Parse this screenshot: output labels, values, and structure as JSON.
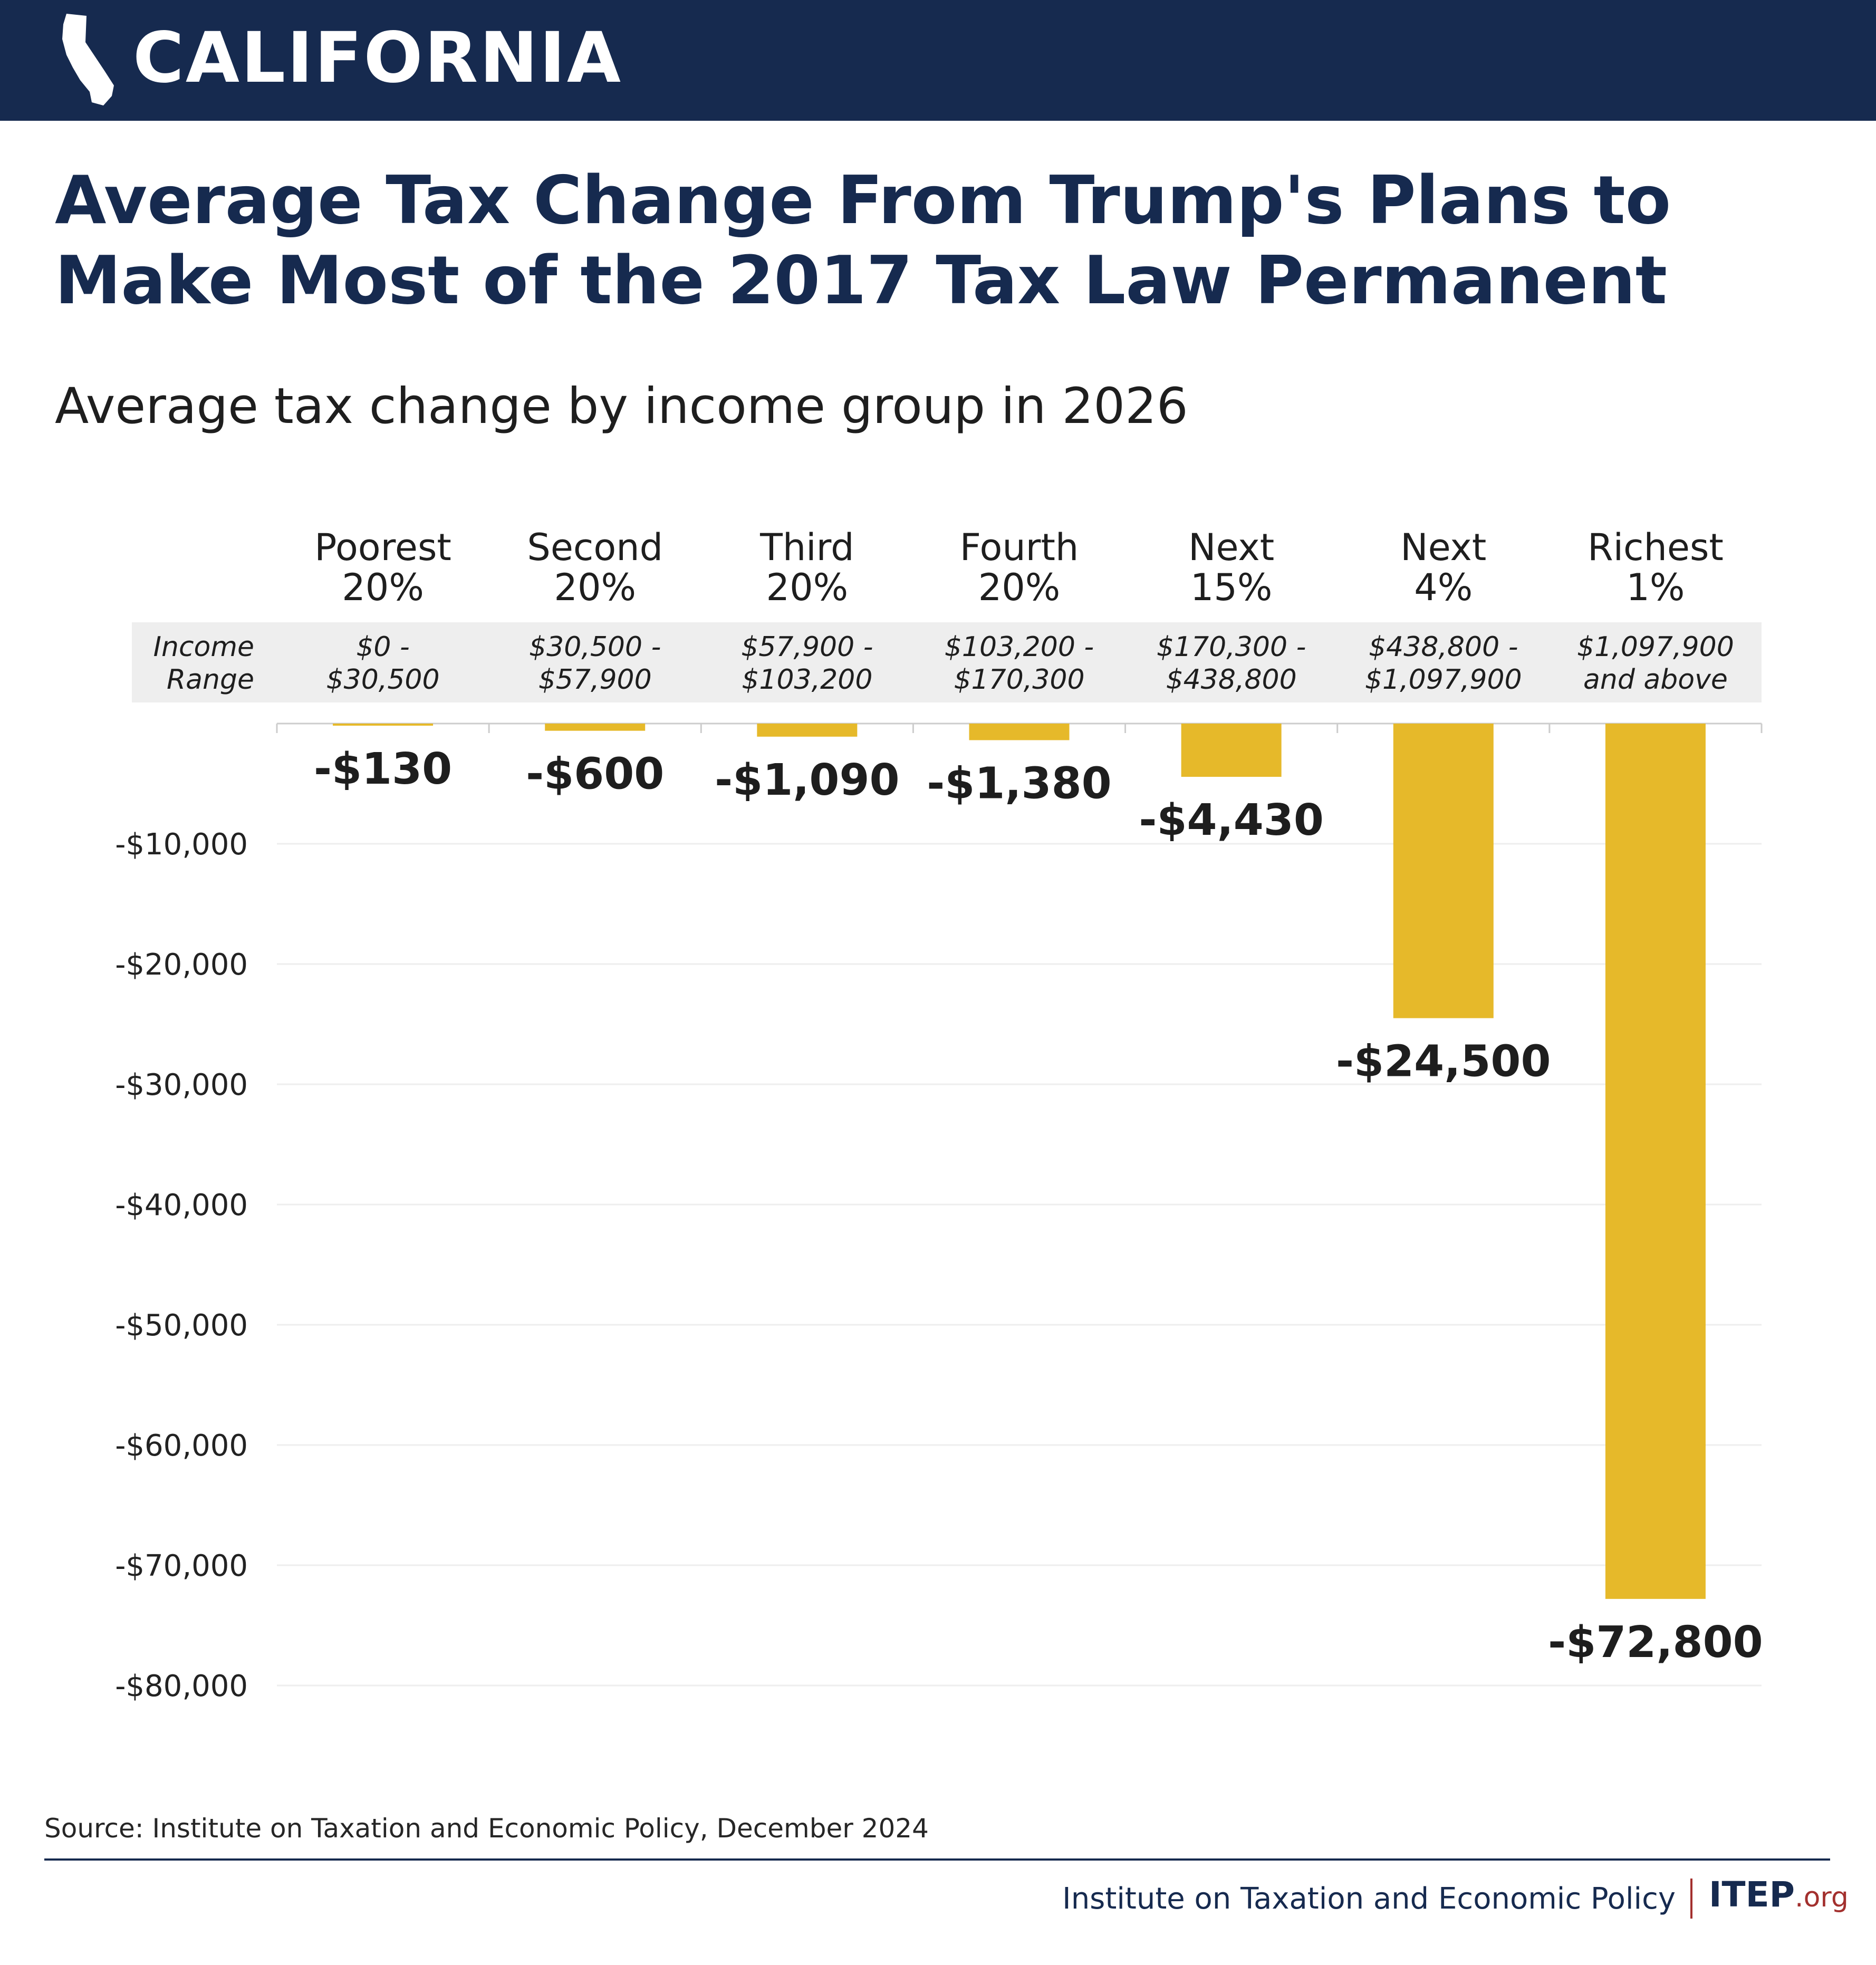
{
  "banner": {
    "title": "CALIFORNIA",
    "icon": "california-state-icon"
  },
  "header": {
    "title": "Average Tax Change From Trump's Plans to Make Most of the 2017 Tax Law Permanent",
    "subtitle": "Average tax change by income group in 2026"
  },
  "chart_data": {
    "type": "bar",
    "orientation": "vertical",
    "categories": [
      [
        "Poorest",
        "20%"
      ],
      [
        "Second",
        "20%"
      ],
      [
        "Third",
        "20%"
      ],
      [
        "Fourth",
        "20%"
      ],
      [
        "Next",
        "15%"
      ],
      [
        "Next",
        "4%"
      ],
      [
        "Richest",
        "1%"
      ]
    ],
    "income_range_label": [
      "Income",
      "Range"
    ],
    "income_ranges": [
      [
        "$0 -",
        "$30,500"
      ],
      [
        "$30,500 -",
        "$57,900"
      ],
      [
        "$57,900 -",
        "$103,200"
      ],
      [
        "$103,200 -",
        "$170,300"
      ],
      [
        "$170,300 -",
        "$438,800"
      ],
      [
        "$438,800 -",
        "$1,097,900"
      ],
      [
        "$1,097,900",
        "and above"
      ]
    ],
    "values": [
      -130,
      -600,
      -1090,
      -1380,
      -4430,
      -24500,
      -72800
    ],
    "value_labels": [
      "-$130",
      "-$600",
      "-$1,090",
      "-$1,380",
      "-$4,430",
      "-$24,500",
      "-$72,800"
    ],
    "ylim": [
      -80000,
      0
    ],
    "y_ticks": [
      -10000,
      -20000,
      -30000,
      -40000,
      -50000,
      -60000,
      -70000,
      -80000
    ],
    "y_tick_labels": [
      "-$10,000",
      "-$20,000",
      "-$30,000",
      "-$40,000",
      "-$50,000",
      "-$60,000",
      "-$70,000",
      "-$80,000"
    ],
    "grid": true,
    "colors": {
      "bar": "#e6b92a",
      "grid": "#eeeeee",
      "range_band": "#eeeeee"
    }
  },
  "footer": {
    "source": "Source: Institute on Taxation and Economic Policy, December 2024",
    "org": "Institute on Taxation and Economic Policy",
    "logo_main": "ITEP",
    "logo_tld": ".org"
  },
  "colors": {
    "navy": "#162a4f",
    "red": "#a3302e"
  }
}
